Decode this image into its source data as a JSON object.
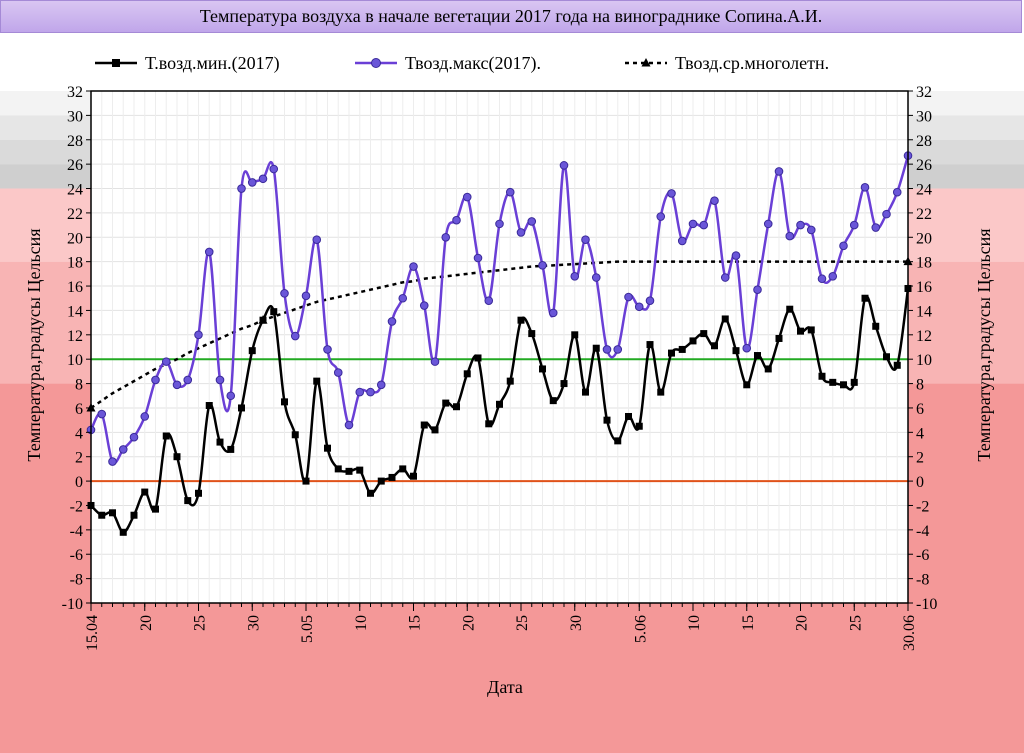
{
  "chart_data": {
    "type": "line",
    "title": "Температура воздуха в начале вегетации  2017 года на винограднике Сопина.А.И.",
    "xlabel": "Дата",
    "ylabel": "Температура,градусы Цельсия",
    "ylim": [
      -10,
      32
    ],
    "yticks": [
      -10,
      -8,
      -6,
      -4,
      -2,
      0,
      2,
      4,
      6,
      8,
      10,
      12,
      14,
      16,
      18,
      20,
      22,
      24,
      26,
      28,
      30,
      32
    ],
    "x_tick_labels": [
      {
        "day": 0,
        "label": "15.04"
      },
      {
        "day": 5,
        "label": "20"
      },
      {
        "day": 10,
        "label": "25"
      },
      {
        "day": 15,
        "label": "30"
      },
      {
        "day": 20,
        "label": "5.05"
      },
      {
        "day": 25,
        "label": "10"
      },
      {
        "day": 30,
        "label": "15"
      },
      {
        "day": 35,
        "label": "20"
      },
      {
        "day": 40,
        "label": "25"
      },
      {
        "day": 45,
        "label": "30"
      },
      {
        "day": 51,
        "label": "5.06"
      },
      {
        "day": 56,
        "label": "10"
      },
      {
        "day": 61,
        "label": "15"
      },
      {
        "day": 66,
        "label": "20"
      },
      {
        "day": 71,
        "label": "25"
      },
      {
        "day": 76,
        "label": "30.06"
      }
    ],
    "grid": true,
    "legend_position": "top",
    "reference_lines": [
      {
        "value": 10,
        "color": "#22aa22"
      },
      {
        "value": 0,
        "color": "#e0521a"
      }
    ],
    "background_bands": [
      {
        "from": 30,
        "to": 32,
        "color": "#f3f3f3"
      },
      {
        "from": 28,
        "to": 30,
        "color": "#e6e6e6"
      },
      {
        "from": 26,
        "to": 28,
        "color": "#dadada"
      },
      {
        "from": 24,
        "to": 26,
        "color": "#cfcfcf"
      },
      {
        "from": 18,
        "to": 24,
        "color": "#fbc8c8"
      },
      {
        "from": 8,
        "to": 18,
        "color": "#f8b4b4"
      },
      {
        "from": -99,
        "to": 8,
        "color": "#f49898"
      }
    ],
    "series": [
      {
        "name": "Т.возд.мин.(2017)",
        "color": "#000000",
        "marker": "square",
        "values": [
          -2,
          -2.8,
          -2.6,
          -4.2,
          -2.8,
          -0.9,
          -2.3,
          3.7,
          2,
          -1.6,
          -1,
          6.2,
          3.2,
          2.6,
          6,
          10.7,
          13.2,
          13.9,
          6.5,
          3.8,
          0,
          8.2,
          2.7,
          1,
          0.8,
          0.9,
          -1,
          0,
          0.3,
          1,
          0.4,
          4.6,
          4.2,
          6.4,
          6.1,
          8.8,
          10.1,
          4.7,
          6.3,
          8.2,
          13.2,
          12.1,
          9.2,
          6.6,
          8,
          12,
          7.3,
          10.9,
          5,
          3.3,
          5.3,
          4.5,
          11.2,
          7.3,
          10.5,
          10.8,
          11.5,
          12.1,
          11.1,
          13.3,
          10.7,
          7.9,
          10.3,
          9.2,
          11.7,
          14.1,
          12.3,
          12.4,
          8.6,
          8.1,
          7.9,
          8.1,
          15,
          12.7,
          10.2,
          9.5,
          15.8
        ]
      },
      {
        "name": "Твозд.макс(2017).",
        "color": "#6a3fd6",
        "marker": "circle",
        "values": [
          4.2,
          5.5,
          1.6,
          2.6,
          3.6,
          5.3,
          8.3,
          9.8,
          7.9,
          8.3,
          12,
          18.8,
          8.3,
          7,
          24,
          24.5,
          24.8,
          25.6,
          15.4,
          11.9,
          15.2,
          19.8,
          10.8,
          8.9,
          4.6,
          7.3,
          7.3,
          7.9,
          13.1,
          15,
          17.6,
          14.4,
          9.8,
          20,
          21.4,
          23.3,
          18.3,
          14.8,
          21.1,
          23.7,
          20.4,
          21.3,
          17.7,
          13.8,
          25.9,
          16.8,
          19.8,
          16.7,
          10.8,
          10.8,
          15.1,
          14.3,
          14.8,
          21.7,
          23.6,
          19.7,
          21.1,
          21,
          23,
          16.7,
          18.5,
          10.9,
          15.7,
          21.1,
          25.4,
          20.1,
          21,
          20.6,
          16.6,
          16.8,
          19.3,
          21,
          24.1,
          20.8,
          21.9,
          23.7,
          26.7
        ]
      },
      {
        "name": "Твозд.ср.многолетн.",
        "color": "#000000",
        "marker": "triangle",
        "dashed": true,
        "values": [
          6,
          6.6,
          7.2,
          7.7,
          8.2,
          8.7,
          9.2,
          9.6,
          10,
          10.5,
          10.9,
          11.3,
          11.7,
          12.1,
          12.5,
          12.8,
          13.2,
          13.5,
          13.8,
          14.1,
          14.4,
          14.7,
          14.9,
          15.1,
          15.3,
          15.5,
          15.7,
          15.9,
          16.1,
          16.3,
          16.4,
          16.6,
          16.7,
          16.8,
          16.9,
          17,
          17.1,
          17.2,
          17.3,
          17.4,
          17.5,
          17.6,
          17.65,
          17.7,
          17.75,
          17.8,
          17.85,
          17.9,
          17.95,
          18,
          18,
          18,
          18,
          18,
          18,
          18,
          18,
          18,
          18,
          18,
          18,
          18,
          18,
          18,
          18,
          18,
          18,
          18,
          18,
          18,
          18,
          18,
          18,
          18,
          18,
          18,
          18
        ]
      }
    ]
  }
}
